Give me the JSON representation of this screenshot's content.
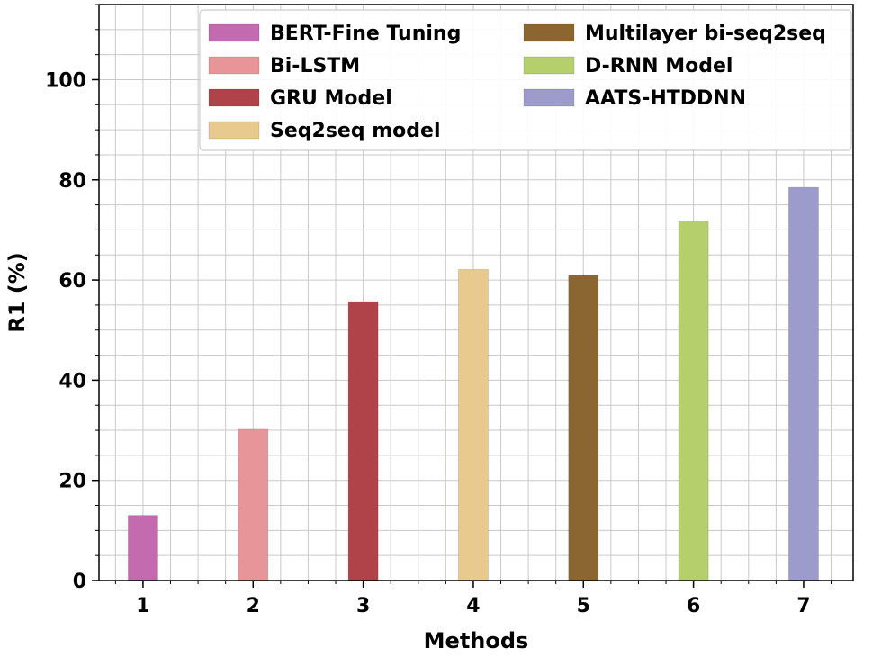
{
  "chart_data": {
    "type": "bar",
    "title": "",
    "xlabel": "Methods",
    "ylabel": "R1 (%)",
    "categories": [
      "1",
      "2",
      "3",
      "4",
      "5",
      "6",
      "7"
    ],
    "yticks": [
      "0",
      "20",
      "40",
      "60",
      "80",
      "100"
    ],
    "ylim": [
      0,
      115
    ],
    "xlim": [
      0.6,
      7.45
    ],
    "grid": true,
    "legend_position": "top-right",
    "series": [
      {
        "name": "BERT-Fine Tuning",
        "x": 1,
        "value": 13,
        "color": "#c46aaf"
      },
      {
        "name": "Bi-LSTM",
        "x": 2,
        "value": 30.2,
        "color": "#e8959a"
      },
      {
        "name": "GRU Model",
        "x": 3,
        "value": 55.7,
        "color": "#b0434a"
      },
      {
        "name": "Seq2seq model",
        "x": 4,
        "value": 62.1,
        "color": "#e9ca8e"
      },
      {
        "name": "Multilayer bi-seq2seq",
        "x": 5,
        "value": 60.9,
        "color": "#8c6630"
      },
      {
        "name": "D-RNN Model",
        "x": 6,
        "value": 71.8,
        "color": "#b4cf6b"
      },
      {
        "name": "AATS-HTDDNN",
        "x": 7,
        "value": 78.5,
        "color": "#9c9bcc"
      }
    ]
  }
}
